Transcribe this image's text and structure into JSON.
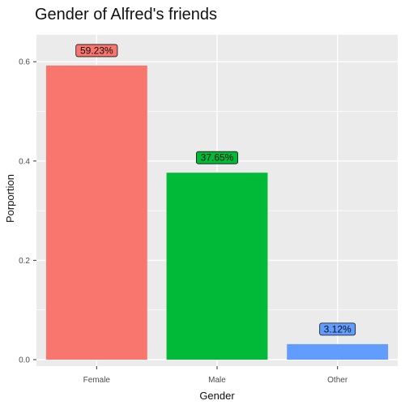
{
  "chart_data": {
    "type": "bar",
    "title": "Gender of Alfred's friends",
    "xlabel": "Gender",
    "ylabel": "Porportion",
    "categories": [
      "Female",
      "Male",
      "Other"
    ],
    "values": [
      0.5923,
      0.3765,
      0.0312
    ],
    "data_labels": [
      "59.23%",
      "37.65%",
      "3.12%"
    ],
    "colors": [
      "#F8766D",
      "#00BA38",
      "#619CFF"
    ],
    "label_fill_colors": [
      "#F8766D",
      "#00BA38",
      "#619CFF"
    ],
    "ylim": [
      0,
      0.62
    ],
    "y_ticks": [
      0.0,
      0.2,
      0.4,
      0.6
    ],
    "y_tick_labels": [
      "0.0",
      "0.2",
      "0.4",
      "0.6"
    ],
    "grid": true,
    "legend": "none",
    "panel_background": "#EBEBEB",
    "grid_color": "#FFFFFF"
  }
}
